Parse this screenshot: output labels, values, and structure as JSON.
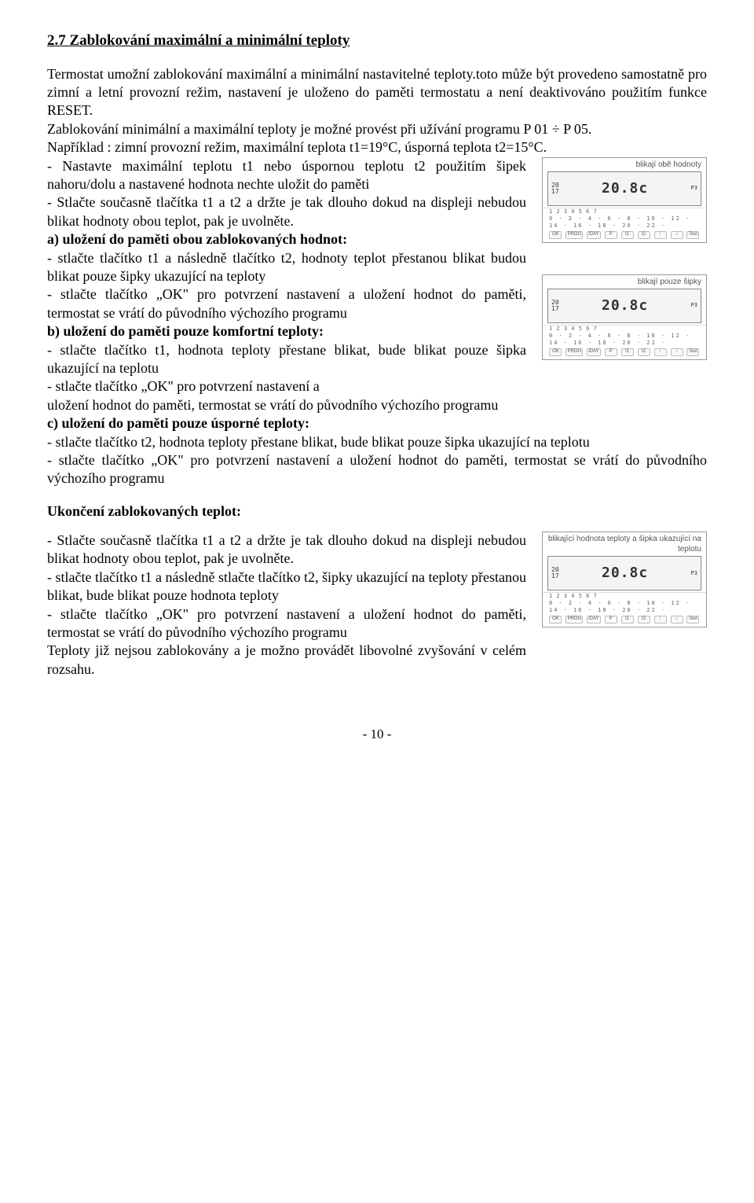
{
  "section": {
    "title": "2.7 Zablokování maximální a minimální teploty",
    "intro": "Termostat umožní zablokování maximální a minimální nastavitelné teploty.toto může být provedeno samostatně pro zimní a letní provozní režim, nastavení je uloženo do paměti termostatu a není deaktivováno použitím funkce RESET.",
    "para2": "Zablokování minimální a maximální teploty je možné provést při užívání programu P 01 ÷ P 05.",
    "para3": "Například : zimní provozní režim, maximální teplota t1=19°C, úsporná teplota t2=15°C.",
    "bullet1_pre": "- Nastavte maximální teplotu t1 nebo úspornou teplotu t2 použitím šipek nahoru/dolu a nastavené hodnota nechte uložit do paměti",
    "bullet2": "- Stlačte současně tlačítka t1 a t2 a držte je tak dlouho dokud na displeji nebudou blikat hodnoty obou teplot, pak je uvolněte.",
    "a_head": "a) uložení do paměti obou zablokovaných hodnot:",
    "a_line1": "- stlačte tlačítko t1 a následně tlačítko t2, hodnoty teplot přestanou blikat    budou blikat pouze šipky ukazující na teploty",
    "a_line2": "- stlačte tlačítko „OK\" pro potvrzení nastavení a uložení hodnot do paměti, termostat se vrátí do původního výchozího programu",
    "b_head": "b) uložení do paměti pouze komfortní teploty:",
    "b_line1": "- stlačte tlačítko t1,  hodnota teploty přestane blikat, bude blikat pouze šipka ukazující na teplotu",
    "b_line2": "- stlačte tlačítko „OK\" pro potvrzení nastavení a uložení hodnot do paměti, termostat se vrátí do původního výchozího programu",
    "c_head": "c) uložení do paměti pouze úsporné teploty:",
    "c_line1": "- stlačte tlačítko t2,  hodnota teploty přestane blikat, bude blikat pouze šipka ukazující na teplotu",
    "c_line2": "- stlačte tlačítko „OK\" pro potvrzení nastavení a uložení hodnot do paměti, termostat se vrátí do původního výchozího programu",
    "sub2": "Ukončení zablokovaných teplot:",
    "end_line1": "- Stlačte současně tlačítka t1 a t2 a držte je tak dlouho dokud na displeji nebudou blikat hodnoty obou teplot, pak je uvolněte.",
    "end_line2": "- stlačte tlačítko t1 a následně stlačte tlačítko t2,  šipky ukazující na teploty přestanou blikat, bude blikat pouze hodnota teploty",
    "end_line3": "- stlačte tlačítko „OK\" pro potvrzení nastavení a uložení hodnot do paměti, termostat se vrátí do původního výchozího programu",
    "end_line4": "Teploty již nejsou zablokovány a je možno provádět libovolné zvyšování v celém rozsahu."
  },
  "thermo": {
    "caption1": "blikají obě hodnoty",
    "caption2": "blikají pouze šipky",
    "caption3": "blikající hodnota teploty a šipka ukazující na teplotu",
    "temp": "20.8c",
    "seg_top": "20",
    "seg_bot": "17",
    "seg_right": "P3",
    "days": "1 2 3 4 5 6 7",
    "scale": "0 · 2 · 4 · 6 · 8 · 10 · 12 · 14 · 16 · 18 · 20 · 22 ·",
    "btns": [
      "OK",
      "PROG",
      "/DAY",
      "P",
      "t1",
      "t2",
      "↑",
      "↓",
      "Test"
    ]
  },
  "page": "- 10 -"
}
